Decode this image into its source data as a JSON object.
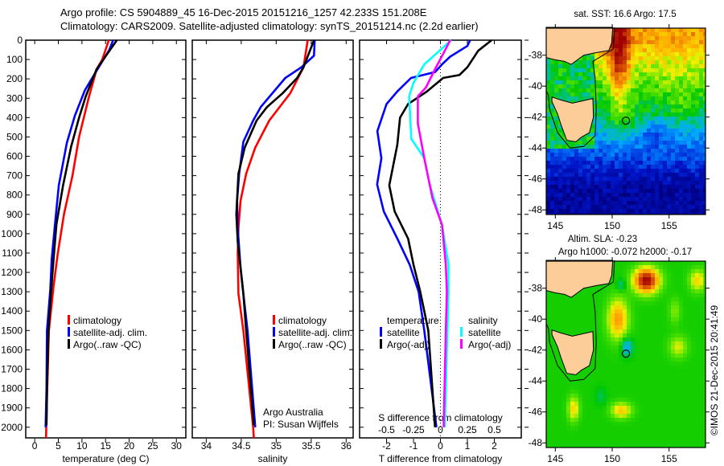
{
  "header": {
    "line1": "Argo profile: CS 5904889_45 16-Dec-2015 20151216_1257 42.233S 151.208E",
    "line2": "Climatology: CARS2009. Satellite-adjusted climatology: synTS_20151214.nc (2.2d earlier)"
  },
  "chart_data": [
    {
      "type": "line",
      "title": "",
      "xlabel": "temperature (deg C)",
      "ylabel": "",
      "xlim": [
        -1.9,
        32
      ],
      "ylim": [
        2055,
        0
      ],
      "xticks": [
        "0",
        "5",
        "10",
        "15",
        "20",
        "25",
        "30"
      ],
      "xtick_values": [
        0,
        5,
        10,
        15,
        20,
        25,
        30
      ],
      "yticks": [
        "0",
        "100",
        "200",
        "300",
        "400",
        "500",
        "600",
        "700",
        "800",
        "900",
        "1000",
        "1100",
        "1200",
        "1300",
        "1400",
        "1500",
        "1600",
        "1700",
        "1800",
        "1900",
        "2000"
      ],
      "ytick_values": [
        0,
        100,
        200,
        300,
        400,
        500,
        600,
        700,
        800,
        900,
        1000,
        1100,
        1200,
        1300,
        1400,
        1500,
        1600,
        1700,
        1800,
        1900,
        2000
      ],
      "legend": {
        "placement": "lower-left",
        "items": [
          {
            "label": "climatology",
            "color": "#ff0000"
          },
          {
            "label": "satellite-adj. clim.",
            "color": "#0000ff"
          },
          {
            "label": "Argo(..raw -QC)",
            "color": "#000000"
          }
        ]
      },
      "series": [
        {
          "name": "climatology",
          "color": "#ff0000",
          "depth": [
            0,
            100,
            150,
            300,
            500,
            700,
            900,
            1100,
            1270,
            1500,
            1800,
            2000,
            2055
          ],
          "values": [
            15.7,
            14.3,
            13.1,
            11.4,
            9.4,
            8.0,
            6.2,
            4.9,
            4.0,
            3.0,
            2.65,
            2.45,
            2.4
          ]
        },
        {
          "name": "satellite-adj. clim.",
          "color": "#0000ff",
          "depth": [
            0,
            50,
            110,
            190,
            260,
            390,
            530,
            750,
            950,
            1130,
            1290,
            1500,
            1800,
            2000
          ],
          "values": [
            16.6,
            15.8,
            14.3,
            12.3,
            10.6,
            8.5,
            6.8,
            5.1,
            4.3,
            3.6,
            3.3,
            2.6,
            2.5,
            2.3
          ]
        },
        {
          "name": "Argo(..raw -QC)",
          "color": "#000000",
          "depth": [
            0,
            80,
            150,
            290,
            400,
            550,
            750,
            950,
            1130,
            1290,
            1500,
            1800,
            1990
          ],
          "values": [
            17.4,
            15.1,
            13.1,
            10.8,
            9.4,
            7.7,
            6.0,
            4.6,
            4.0,
            3.5,
            2.9,
            2.6,
            2.5
          ]
        }
      ]
    },
    {
      "type": "line",
      "title": "",
      "xlabel": "salinity",
      "ylabel": "",
      "xlim": [
        33.8,
        36.1
      ],
      "ylim": [
        2055,
        0
      ],
      "xticks": [
        "34",
        "34.5",
        "35",
        "35.5",
        "36"
      ],
      "xtick_values": [
        34,
        34.5,
        35,
        35.5,
        36
      ],
      "legend": {
        "placement": "lower-right",
        "items": [
          {
            "label": "climatology",
            "color": "#ff0000"
          },
          {
            "label": "satellite-adj. clim.",
            "color": "#0000ff"
          },
          {
            "label": "Argo(..raw -QC)",
            "color": "#000000"
          }
        ]
      },
      "annotations": [
        "Argo Australia",
        "PI: Susan Wijffels"
      ],
      "series": [
        {
          "name": "climatology",
          "color": "#ff0000",
          "depth": [
            0,
            140,
            275,
            415,
            555,
            690,
            830,
            970,
            1100,
            1310,
            1500,
            2000,
            2055
          ],
          "values": [
            35.45,
            35.39,
            35.2,
            34.9,
            34.7,
            34.57,
            34.49,
            34.46,
            34.45,
            34.46,
            34.53,
            34.67,
            34.68
          ]
        },
        {
          "name": "satellite-adj. clim.",
          "color": "#0000ff",
          "depth": [
            0,
            80,
            140,
            195,
            345,
            415,
            525,
            690,
            830,
            970,
            1175,
            1310,
            1500,
            2000
          ],
          "values": [
            35.55,
            35.54,
            35.36,
            35.13,
            34.78,
            34.67,
            34.53,
            34.47,
            34.44,
            34.45,
            34.49,
            34.53,
            34.59,
            34.7
          ]
        },
        {
          "name": "Argo(..raw -QC)",
          "color": "#000000",
          "depth": [
            0,
            140,
            195,
            275,
            345,
            415,
            555,
            690,
            900,
            1040,
            1310,
            1500,
            1990
          ],
          "values": [
            35.54,
            35.39,
            35.3,
            35.09,
            34.87,
            34.72,
            34.55,
            34.46,
            34.43,
            34.45,
            34.53,
            34.57,
            34.68
          ]
        }
      ]
    },
    {
      "type": "line",
      "title": "",
      "xlabel": "T difference from climatology",
      "x2label": "S difference from climatology",
      "ylabel": "",
      "xlim": [
        -3,
        3
      ],
      "x2lim": [
        -0.75,
        0.75
      ],
      "ylim": [
        2055,
        0
      ],
      "xticks": [
        "-2",
        "-1",
        "0",
        "1",
        "2"
      ],
      "xtick_values": [
        -2,
        -1,
        0,
        1,
        2
      ],
      "x2ticks": [
        "-0.5",
        "-0.25",
        "0",
        "0.25",
        "0.5"
      ],
      "x2tick_values": [
        -0.5,
        -0.25,
        0,
        0.25,
        0.5
      ],
      "zero_line": "dotted",
      "legend": {
        "placement": "lower-center",
        "temperature_heading": "temperature",
        "salinity_heading": "salinity",
        "temperature_items": [
          {
            "label": "satellite",
            "color": "#0000ff"
          },
          {
            "label": "Argo(-adj)",
            "color": "#000000"
          }
        ],
        "salinity_items": [
          {
            "label": "satellite",
            "color": "#00ffff"
          },
          {
            "label": "Argo(-adj)",
            "color": "#ff00ff"
          }
        ]
      },
      "series": [
        {
          "name": "T satellite",
          "axis": "T",
          "color": "#0000ff",
          "depth": [
            0,
            30,
            85,
            125,
            165,
            195,
            265,
            330,
            470,
            610,
            745,
            885,
            1025,
            1160,
            1300,
            1500,
            2000
          ],
          "values": [
            1.1,
            1.0,
            0.36,
            0.06,
            -0.2,
            -1.09,
            -1.6,
            -2.0,
            -2.34,
            -2.19,
            -2.35,
            -2.1,
            -1.6,
            -1.14,
            -0.81,
            -0.6,
            -0.15
          ]
        },
        {
          "name": "T Argo(-adj)",
          "axis": "T",
          "color": "#000000",
          "depth": [
            0,
            55,
            140,
            180,
            195,
            265,
            330,
            400,
            540,
            750,
            885,
            1025,
            1160,
            1300,
            1500,
            2000
          ],
          "values": [
            1.9,
            1.4,
            1.0,
            0.7,
            0.1,
            -0.5,
            -1.2,
            -1.5,
            -1.6,
            -1.9,
            -1.7,
            -1.2,
            -1.0,
            -0.75,
            -0.45,
            -0.2
          ]
        },
        {
          "name": "S satellite",
          "axis": "S",
          "color": "#00ffff",
          "depth": [
            0,
            55,
            125,
            220,
            290,
            510,
            610,
            745,
            955,
            1160,
            1300,
            1500,
            2000
          ],
          "values": [
            0.1,
            -0.01,
            -0.15,
            -0.25,
            -0.29,
            -0.27,
            -0.15,
            -0.1,
            0.015,
            0.075,
            0.075,
            0.065,
            0.04
          ]
        },
        {
          "name": "S Argo(-adj)",
          "axis": "S",
          "color": "#ff00ff",
          "depth": [
            0,
            55,
            150,
            245,
            290,
            430,
            610,
            815,
            955,
            1160,
            1300,
            1500,
            2000
          ],
          "values": [
            0.09,
            0.04,
            -0.05,
            -0.135,
            -0.21,
            -0.21,
            -0.15,
            -0.075,
            0.015,
            0.05,
            0.06,
            0.05,
            0.03
          ]
        }
      ]
    }
  ],
  "maps": [
    {
      "name": "sst",
      "title_lines": [
        "sat. SST: 16.6 Argo: 17.5"
      ],
      "lon_ticks": [
        "145",
        "150",
        "155"
      ],
      "lon_tick_values": [
        145,
        150,
        155
      ],
      "lat_ticks": [
        "-38",
        "-40",
        "-42",
        "-44",
        "-46",
        "-48"
      ],
      "lat_tick_values": [
        -38,
        -40,
        -42,
        -44,
        -46,
        -48
      ],
      "argo_position": {
        "lon": 151.208,
        "lat": -42.233
      }
    },
    {
      "name": "sla",
      "title_lines": [
        "Altim. SLA: -0.23",
        "Argo h1000: -0.072 h2000: -0.17"
      ],
      "lon_ticks": [
        "145",
        "150",
        "155"
      ],
      "lon_tick_values": [
        145,
        150,
        155
      ],
      "lat_ticks": [
        "-38",
        "-40",
        "-42",
        "-44",
        "-46",
        "-48"
      ],
      "lat_tick_values": [
        -38,
        -40,
        -42,
        -44,
        -46,
        -48
      ],
      "argo_position": {
        "lon": 151.208,
        "lat": -42.233
      }
    }
  ],
  "footer": {
    "copyright": "©IMOS 21-Dec-2015 20:41:49"
  }
}
